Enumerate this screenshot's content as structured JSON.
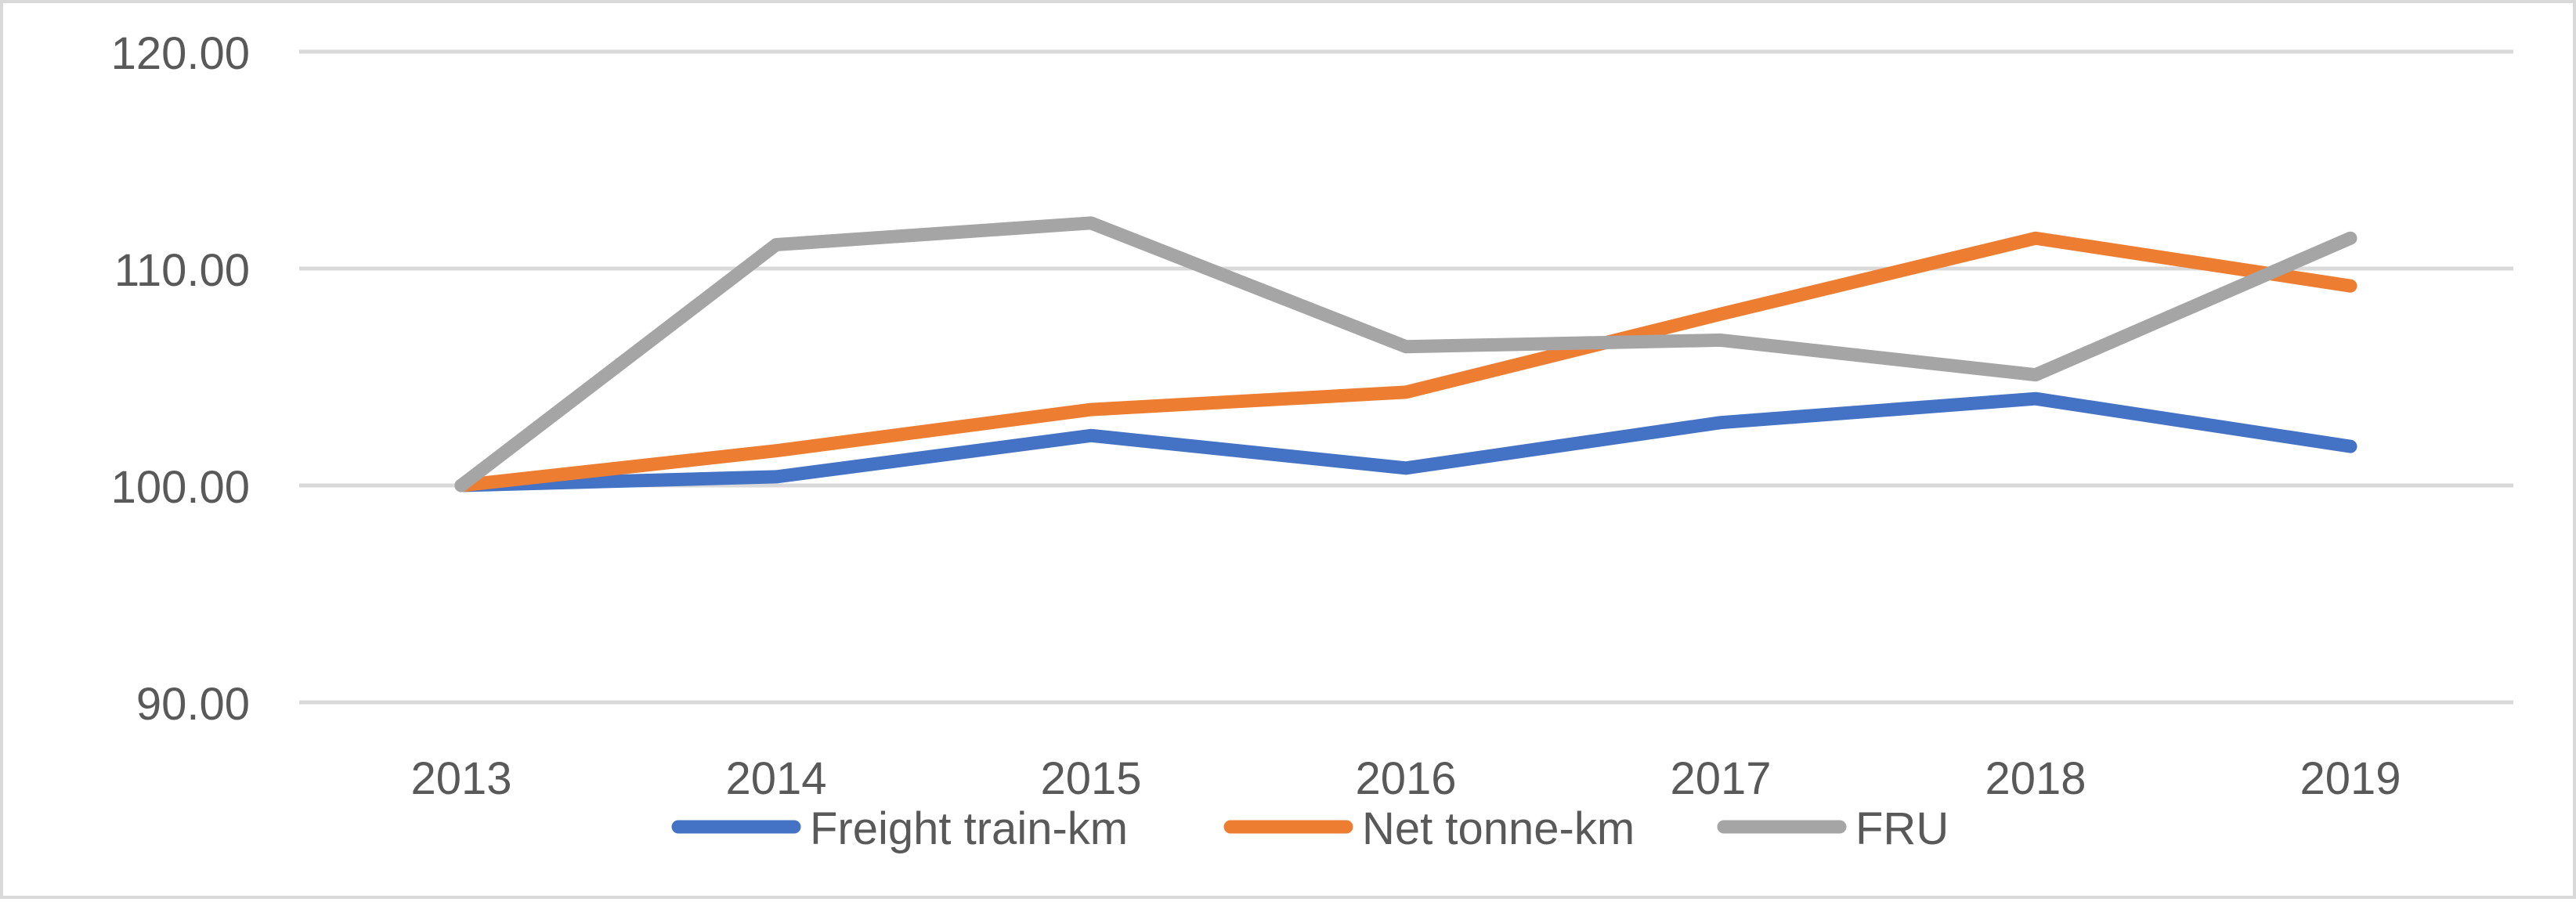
{
  "chart_data": {
    "type": "line",
    "title": "",
    "xlabel": "",
    "ylabel": "",
    "categories": [
      "2013",
      "2014",
      "2015",
      "2016",
      "2017",
      "2018",
      "2019"
    ],
    "ylim": [
      90,
      120
    ],
    "yticks": [
      90,
      100,
      110,
      120
    ],
    "ytick_labels": [
      "90.00",
      "100.00",
      "110.00",
      "120.00"
    ],
    "grid": true,
    "legend_position": "bottom",
    "series": [
      {
        "name": "Freight train-km",
        "color": "#4472c4",
        "values": [
          100.0,
          100.4,
          102.3,
          100.8,
          102.9,
          104.0,
          101.8
        ]
      },
      {
        "name": "Net tonne-km",
        "color": "#ed7d31",
        "values": [
          100.0,
          101.6,
          103.5,
          104.3,
          107.9,
          111.4,
          109.2
        ]
      },
      {
        "name": "FRU",
        "color": "#a5a5a5",
        "values": [
          100.0,
          111.1,
          112.1,
          106.4,
          106.7,
          105.1,
          111.4
        ]
      }
    ]
  }
}
